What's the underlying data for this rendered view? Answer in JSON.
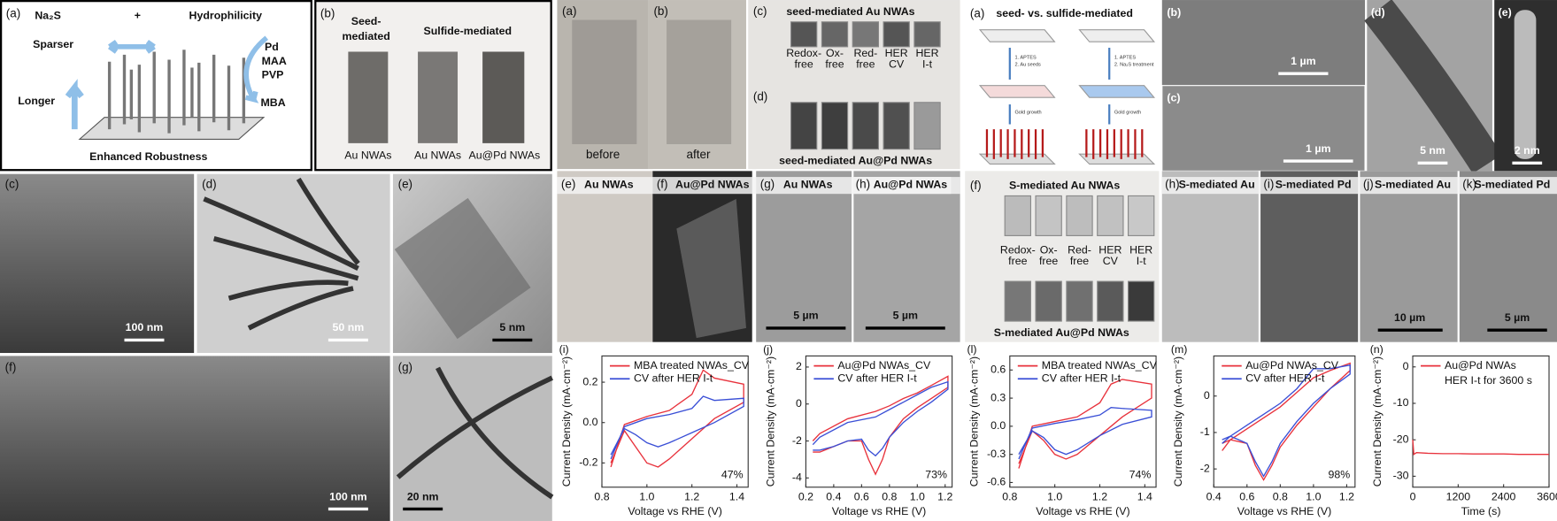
{
  "left": {
    "a": {
      "label": "(a)",
      "reagent": "Na₂S",
      "plus": "+",
      "property": "Hydrophilicity",
      "sparser": "Sparser",
      "ligands": [
        "Pd",
        "MAA",
        "PVP"
      ],
      "mba": "MBA",
      "longer": "Longer",
      "caption": "Enhanced Robustness"
    },
    "b": {
      "label": "(b)",
      "seed": [
        "Seed-",
        "mediated"
      ],
      "sulfide": "Sulfide-mediated",
      "samples": [
        "Au NWAs",
        "Au NWAs",
        "Au@Pd NWAs"
      ]
    },
    "c": {
      "label": "(c)",
      "scale": "100 nm"
    },
    "d": {
      "label": "(d)",
      "scale": "50 nm"
    },
    "e": {
      "label": "(e)",
      "scale": "5 nm"
    },
    "f": {
      "label": "(f)",
      "scale": "100 nm"
    },
    "g": {
      "label": "(g)",
      "scale": "20 nm"
    }
  },
  "middle": {
    "a": {
      "label": "(a)",
      "caption": "before"
    },
    "b": {
      "label": "(b)",
      "caption": "after"
    },
    "c": {
      "label": "(c)",
      "title": "seed-mediated Au NWAs",
      "conditions": [
        [
          "Redox-",
          "free"
        ],
        [
          "Ox-",
          "free"
        ],
        [
          "Red-",
          "free"
        ],
        [
          "HER",
          "CV"
        ],
        [
          "HER",
          "I-t"
        ]
      ]
    },
    "d": {
      "label": "(d)",
      "caption": "seed-mediated Au@Pd NWAs"
    },
    "e": {
      "label": "(e)",
      "title": "Au NWAs"
    },
    "f": {
      "label": "(f)",
      "title": "Au@Pd NWAs"
    },
    "g": {
      "label": "(g)",
      "title": "Au NWAs",
      "scale": "5 µm"
    },
    "h": {
      "label": "(h)",
      "title": "Au@Pd NWAs",
      "scale": "5 µm"
    }
  },
  "right": {
    "a": {
      "label": "(a)",
      "title": "seed- vs. sulfide-mediated",
      "seed_steps": [
        "1. APTES",
        "2. Au seeds"
      ],
      "sulfide_steps": [
        "1. APTES",
        "2. Na₂S treatment"
      ],
      "growth": [
        "Gold growth",
        "Gold growth"
      ]
    },
    "b": {
      "label": "(b)",
      "scale": "1 µm"
    },
    "c": {
      "label": "(c)",
      "scale": "1 µm"
    },
    "d": {
      "label": "(d)",
      "scale": "5 nm"
    },
    "e": {
      "label": "(e)",
      "scale": "2 nm"
    },
    "f": {
      "label": "(f)",
      "title": "S-mediated Au NWAs",
      "conditions": [
        [
          "Redox-",
          "free"
        ],
        [
          "Ox-",
          "free"
        ],
        [
          "Red-",
          "free"
        ],
        [
          "HER",
          "CV"
        ],
        [
          "HER",
          "I-t"
        ]
      ],
      "caption": "S-mediated Au@Pd NWAs"
    },
    "h": {
      "label": "(h)",
      "title": "S-mediated Au"
    },
    "i": {
      "label": "(i)",
      "title": "S-mediated Pd"
    },
    "j": {
      "label": "(j)",
      "title": "S-mediated Au",
      "scale": "10 µm"
    },
    "k": {
      "label": "(k)",
      "title": "S-mediated Pd",
      "scale": "5 µm"
    }
  },
  "chart_data": [
    {
      "type": "line",
      "label": "(i)",
      "xlabel": "Voltage vs RHE (V)",
      "ylabel": "Current Density (mA·cm⁻²)",
      "xlim": [
        0.8,
        1.45
      ],
      "xticks": [
        0.8,
        {
          "value": 1,
          "label": "1.0"
        },
        1.2,
        1.4
      ],
      "ylim": [
        -0.32,
        0.33
      ],
      "yticks": [
        0.2,
        {
          "value": 0,
          "label": "0.0"
        },
        -0.2
      ],
      "x": [
        0.84,
        0.9,
        1.0,
        1.1,
        1.2,
        1.25,
        1.3,
        1.43,
        1.43,
        1.3,
        1.2,
        1.1,
        1.05,
        1.0,
        0.95,
        0.9,
        0.84
      ],
      "series": [
        {
          "name": "MBA treated NWAs_CV",
          "color": "#e8323c",
          "values": [
            -0.22,
            -0.01,
            0.03,
            0.06,
            0.14,
            0.26,
            0.22,
            0.19,
            0.1,
            0.02,
            -0.08,
            -0.18,
            -0.22,
            -0.2,
            -0.12,
            -0.04,
            -0.2
          ]
        },
        {
          "name": "CV after HER I-t",
          "color": "#3a4fd6",
          "values": [
            -0.18,
            -0.02,
            0.02,
            0.04,
            0.07,
            0.13,
            0.11,
            0.12,
            0.08,
            0.0,
            -0.05,
            -0.1,
            -0.12,
            -0.1,
            -0.06,
            -0.03,
            -0.16
          ]
        }
      ],
      "annotation": "47%"
    },
    {
      "type": "line",
      "label": "(j)",
      "xlabel": "Voltage vs RHE (V)",
      "ylabel": "Current Density (mA·cm⁻²)",
      "xlim": [
        0.2,
        1.25
      ],
      "xticks": [
        0.2,
        0.4,
        0.6,
        0.8,
        {
          "value": 1,
          "label": "1.0"
        },
        1.2
      ],
      "ylim": [
        -4.5,
        2.6
      ],
      "yticks": [
        2,
        0,
        -2,
        -4
      ],
      "x": [
        0.25,
        0.3,
        0.5,
        0.7,
        0.8,
        0.9,
        1.0,
        1.1,
        1.22,
        1.22,
        1.1,
        1.0,
        0.9,
        0.8,
        0.75,
        0.7,
        0.65,
        0.6,
        0.5,
        0.4,
        0.3,
        0.25
      ],
      "series": [
        {
          "name": "Au@Pd NWAs_CV",
          "color": "#e8323c",
          "values": [
            -2.0,
            -1.6,
            -0.8,
            -0.4,
            -0.1,
            0.3,
            0.6,
            1.0,
            1.5,
            0.9,
            0.3,
            -0.2,
            -0.8,
            -1.8,
            -3.0,
            -3.8,
            -3.0,
            -2.0,
            -2.0,
            -2.3,
            -2.6,
            -2.6
          ]
        },
        {
          "name": "CV after HER I-t",
          "color": "#3a4fd6",
          "values": [
            -2.2,
            -1.8,
            -1.0,
            -0.7,
            -0.3,
            0.1,
            0.5,
            0.9,
            1.2,
            0.8,
            0.1,
            -0.4,
            -1.0,
            -1.8,
            -2.4,
            -2.8,
            -2.5,
            -1.9,
            -2.0,
            -2.3,
            -2.5,
            -2.5
          ]
        }
      ],
      "annotation": "73%"
    },
    {
      "type": "line",
      "label": "(l)",
      "xlabel": "Voltage vs RHE (V)",
      "ylabel": "Current Density (mA·cm⁻²)",
      "xlim": [
        0.8,
        1.45
      ],
      "xticks": [
        0.8,
        {
          "value": 1,
          "label": "1.0"
        },
        1.2,
        1.4
      ],
      "ylim": [
        -0.65,
        0.75
      ],
      "yticks": [
        0.6,
        0.3,
        {
          "value": 0,
          "label": "0.0"
        },
        -0.3,
        -0.6
      ],
      "x": [
        0.84,
        0.9,
        1.0,
        1.1,
        1.2,
        1.25,
        1.3,
        1.43,
        1.43,
        1.3,
        1.2,
        1.1,
        1.05,
        1.0,
        0.95,
        0.9,
        0.84
      ],
      "series": [
        {
          "name": "MBA treated NWAs_CV",
          "color": "#e8323c",
          "values": [
            -0.45,
            0.0,
            0.05,
            0.1,
            0.25,
            0.45,
            0.5,
            0.45,
            0.3,
            0.1,
            -0.1,
            -0.3,
            -0.35,
            -0.3,
            -0.15,
            -0.05,
            -0.4
          ]
        },
        {
          "name": "CV after HER I-t",
          "color": "#3a4fd6",
          "values": [
            -0.35,
            -0.02,
            0.03,
            0.07,
            0.12,
            0.2,
            0.19,
            0.17,
            0.1,
            0.02,
            -0.1,
            -0.25,
            -0.3,
            -0.25,
            -0.12,
            -0.05,
            -0.3
          ]
        }
      ],
      "annotation": "74%"
    },
    {
      "type": "line",
      "label": "(m)",
      "xlabel": "Voltage vs RHE (V)",
      "ylabel": "Current Density (mA·cm⁻²)",
      "xlim": [
        0.4,
        1.25
      ],
      "xticks": [
        0.4,
        0.6,
        0.8,
        {
          "value": 1,
          "label": "1.0"
        },
        1.2
      ],
      "ylim": [
        -2.5,
        1.1
      ],
      "yticks": [
        0,
        -1,
        -2
      ],
      "x": [
        0.45,
        0.5,
        0.6,
        0.7,
        0.8,
        0.9,
        1.0,
        1.1,
        1.22,
        1.22,
        1.1,
        1.0,
        0.9,
        0.8,
        0.75,
        0.7,
        0.65,
        0.6,
        0.5,
        0.45
      ],
      "series": [
        {
          "name": "Au@Pd NWAs_CV",
          "color": "#e8323c",
          "values": [
            -1.5,
            -1.2,
            -0.9,
            -0.6,
            -0.3,
            0.1,
            0.5,
            0.7,
            0.9,
            0.7,
            0.2,
            -0.3,
            -0.8,
            -1.4,
            -1.9,
            -2.3,
            -1.9,
            -1.3,
            -1.2,
            -1.3
          ]
        },
        {
          "name": "CV after HER I-t",
          "color": "#3a4fd6",
          "values": [
            -1.3,
            -1.1,
            -0.8,
            -0.5,
            -0.2,
            0.2,
            0.75,
            0.75,
            0.85,
            0.6,
            0.2,
            -0.2,
            -0.7,
            -1.3,
            -1.8,
            -2.2,
            -1.8,
            -1.3,
            -1.1,
            -1.2
          ]
        }
      ],
      "annotation": "98%"
    },
    {
      "type": "line",
      "label": "(n)",
      "xlabel": "Time (s)",
      "ylabel": "Current Density (mA·cm⁻²)",
      "xlim": [
        0,
        3600
      ],
      "xticks": [
        0,
        1200,
        2400,
        3600
      ],
      "ylim": [
        -33,
        3
      ],
      "yticks": [
        0,
        -10,
        -20,
        -30
      ],
      "x": [
        0,
        30,
        100,
        400,
        800,
        1200,
        1600,
        2000,
        2400,
        2800,
        3200,
        3600
      ],
      "series": [
        {
          "name": "Au@Pd NWAs",
          "color": "#e8323c",
          "values": [
            -20,
            -24,
            -23.5,
            -23.7,
            -23.8,
            -23.8,
            -23.9,
            -23.9,
            -23.9,
            -24,
            -24,
            -24
          ]
        }
      ],
      "annotation": "HER I-t for 3600 s"
    }
  ]
}
